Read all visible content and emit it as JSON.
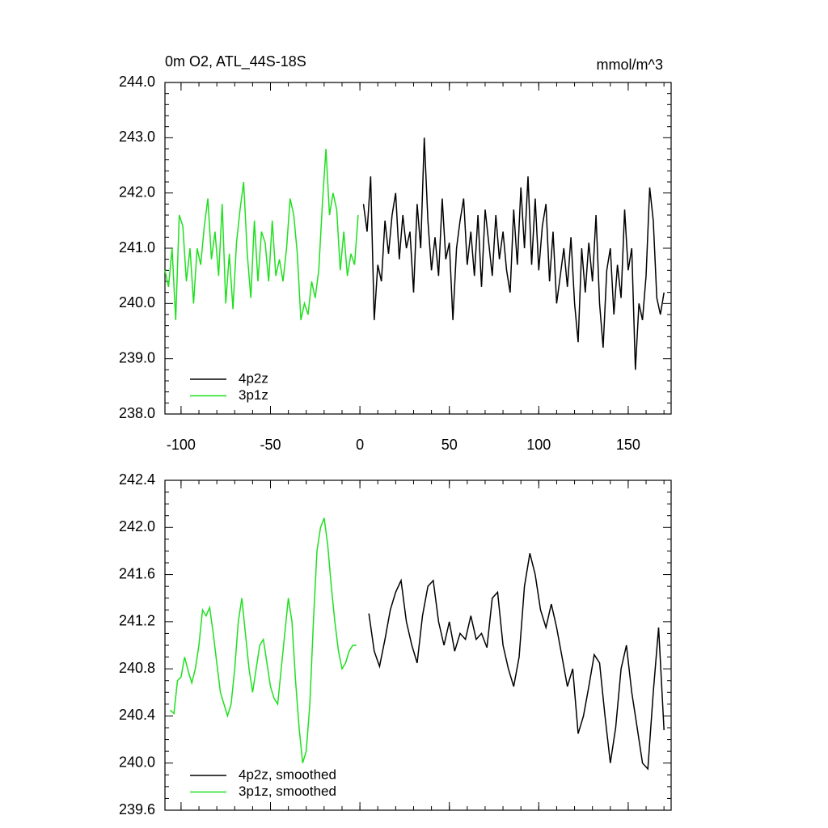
{
  "chart_data": [
    {
      "type": "line",
      "title": "0m O2, ATL_44S-18S",
      "units": "mmol/m^3",
      "xlim": [
        -109,
        174
      ],
      "xticks": [
        -100,
        -50,
        0,
        50,
        100,
        150
      ],
      "ylim": [
        238,
        244
      ],
      "yticks": [
        {
          "value": 238,
          "label": "238.0"
        },
        {
          "value": 239,
          "label": "239.0"
        },
        {
          "value": 240,
          "label": "240.0"
        },
        {
          "value": 241,
          "label": "241.0"
        },
        {
          "value": 242,
          "label": "242.0"
        },
        {
          "value": 243,
          "label": "243.0"
        },
        {
          "value": 244,
          "label": "244.0"
        }
      ],
      "legend": "lower left",
      "series": [
        {
          "name": "4p2z",
          "color": "#000000",
          "x": [
            2,
            4,
            6,
            8,
            10,
            12,
            14,
            16,
            18,
            20,
            22,
            24,
            26,
            28,
            30,
            32,
            34,
            36,
            38,
            40,
            42,
            44,
            46,
            48,
            50,
            52,
            54,
            56,
            58,
            60,
            62,
            64,
            66,
            68,
            70,
            72,
            74,
            76,
            78,
            80,
            82,
            84,
            86,
            88,
            90,
            92,
            94,
            96,
            98,
            100,
            102,
            104,
            106,
            108,
            110,
            112,
            114,
            116,
            118,
            120,
            122,
            124,
            126,
            128,
            130,
            132,
            134,
            136,
            138,
            140,
            142,
            144,
            146,
            148,
            150,
            152,
            154,
            156,
            158,
            160,
            162,
            164,
            166,
            168,
            170
          ],
          "values": [
            241.8,
            241.3,
            242.3,
            239.7,
            240.7,
            240.4,
            241.5,
            240.9,
            241.6,
            242.0,
            240.8,
            241.6,
            241.0,
            241.3,
            240.2,
            241.8,
            241.0,
            243.0,
            241.5,
            240.6,
            241.2,
            240.5,
            241.9,
            240.8,
            241.1,
            239.7,
            241.0,
            241.5,
            241.9,
            240.7,
            241.3,
            240.5,
            241.6,
            240.3,
            241.7,
            241.1,
            240.5,
            241.6,
            240.8,
            241.3,
            240.6,
            240.2,
            241.7,
            240.7,
            242.1,
            241.0,
            242.3,
            240.7,
            241.9,
            240.6,
            241.4,
            241.8,
            240.4,
            241.3,
            240.0,
            240.5,
            241.0,
            240.3,
            241.2,
            240.0,
            239.3,
            241.0,
            240.2,
            241.1,
            240.4,
            241.6,
            240.0,
            239.2,
            240.6,
            241.0,
            239.8,
            240.7,
            240.1,
            241.7,
            240.6,
            241.0,
            238.8,
            240.0,
            239.7,
            240.5,
            242.1,
            241.5,
            240.1,
            239.8,
            240.2
          ]
        },
        {
          "name": "3p1z",
          "color": "#1fe01f",
          "x": [
            -109,
            -107,
            -105,
            -103,
            -101,
            -99,
            -97,
            -95,
            -93,
            -91,
            -89,
            -87,
            -85,
            -83,
            -81,
            -79,
            -77,
            -75,
            -73,
            -71,
            -69,
            -67,
            -65,
            -63,
            -61,
            -59,
            -57,
            -55,
            -53,
            -51,
            -49,
            -47,
            -45,
            -43,
            -41,
            -39,
            -37,
            -35,
            -33,
            -31,
            -29,
            -27,
            -25,
            -23,
            -21,
            -19,
            -17,
            -15,
            -13,
            -11,
            -9,
            -7,
            -5,
            -3,
            -1
          ],
          "values": [
            240.6,
            240.3,
            241.0,
            239.7,
            241.6,
            241.4,
            240.4,
            241.0,
            240.0,
            241.0,
            240.7,
            241.4,
            241.9,
            240.8,
            241.3,
            240.5,
            241.8,
            240.0,
            240.9,
            239.9,
            241.1,
            241.7,
            242.2,
            240.9,
            240.1,
            241.5,
            240.4,
            241.3,
            241.1,
            240.4,
            241.5,
            240.5,
            240.8,
            240.4,
            241.0,
            241.9,
            241.6,
            240.9,
            239.7,
            240.0,
            239.8,
            240.4,
            240.1,
            240.6,
            241.8,
            242.8,
            241.6,
            242.0,
            241.7,
            240.6,
            241.3,
            240.5,
            240.9,
            240.7,
            241.6
          ]
        }
      ]
    },
    {
      "type": "line",
      "xlim": [
        -109,
        174
      ],
      "xticks": [
        -100,
        -50,
        0,
        50,
        100,
        150
      ],
      "xtick_labels": false,
      "ylim": [
        239.6,
        242.4
      ],
      "yticks": [
        239.6,
        {
          "value": 240,
          "label": "240.0"
        },
        240.4,
        240.8,
        241.2,
        241.6,
        {
          "value": 242,
          "label": "242.0"
        },
        242.4
      ],
      "legend": "lower left",
      "series": [
        {
          "name": "4p2z, smoothed",
          "color": "#000000",
          "x": [
            5,
            8,
            11,
            14,
            17,
            20,
            23,
            26,
            29,
            32,
            35,
            38,
            41,
            44,
            47,
            50,
            53,
            56,
            59,
            62,
            65,
            68,
            71,
            74,
            77,
            80,
            83,
            86,
            89,
            92,
            95,
            98,
            101,
            104,
            107,
            110,
            113,
            116,
            119,
            122,
            125,
            128,
            131,
            134,
            137,
            140,
            143,
            146,
            149,
            152,
            155,
            158,
            161,
            164,
            167,
            170
          ],
          "values": [
            241.27,
            240.95,
            240.82,
            241.05,
            241.3,
            241.45,
            241.55,
            241.2,
            241.0,
            240.85,
            241.25,
            241.5,
            241.55,
            241.2,
            241.0,
            241.2,
            240.95,
            241.1,
            241.05,
            241.25,
            241.05,
            241.1,
            240.98,
            241.4,
            241.45,
            241.0,
            240.8,
            240.65,
            240.9,
            241.5,
            241.78,
            241.6,
            241.3,
            241.15,
            241.35,
            241.15,
            240.9,
            240.65,
            240.8,
            240.25,
            240.4,
            240.65,
            240.92,
            240.85,
            240.4,
            240.0,
            240.3,
            240.8,
            241.0,
            240.6,
            240.3,
            240.0,
            239.95,
            240.6,
            241.15,
            240.28
          ]
        },
        {
          "name": "3p1z, smoothed",
          "color": "#1fe01f",
          "x": [
            -106,
            -104,
            -102,
            -100,
            -98,
            -96,
            -94,
            -92,
            -90,
            -88,
            -86,
            -84,
            -82,
            -80,
            -78,
            -76,
            -74,
            -72,
            -70,
            -68,
            -66,
            -64,
            -62,
            -60,
            -58,
            -56,
            -54,
            -52,
            -50,
            -48,
            -46,
            -44,
            -42,
            -40,
            -38,
            -36,
            -34,
            -32,
            -30,
            -28,
            -26,
            -24,
            -22,
            -20,
            -18,
            -16,
            -14,
            -12,
            -10,
            -8,
            -6,
            -4,
            -2
          ],
          "values": [
            240.45,
            240.42,
            240.7,
            240.73,
            240.9,
            240.78,
            240.68,
            240.8,
            241.0,
            241.3,
            241.25,
            241.32,
            241.1,
            240.85,
            240.6,
            240.5,
            240.4,
            240.5,
            240.8,
            241.2,
            241.4,
            241.1,
            240.8,
            240.6,
            240.8,
            241.0,
            241.05,
            240.85,
            240.65,
            240.55,
            240.5,
            240.8,
            241.1,
            241.4,
            241.2,
            240.7,
            240.3,
            240.0,
            240.1,
            240.5,
            241.2,
            241.8,
            242.0,
            242.08,
            241.85,
            241.5,
            241.2,
            240.95,
            240.8,
            240.85,
            240.95,
            241.0,
            241.0
          ]
        }
      ]
    }
  ]
}
